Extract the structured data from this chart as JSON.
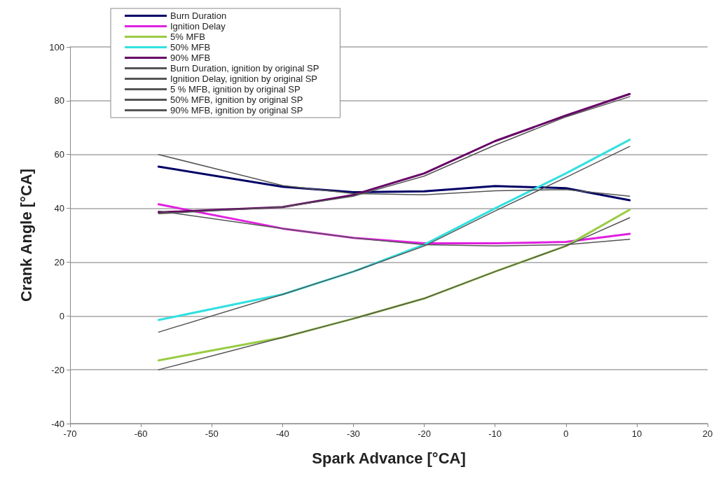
{
  "chart_data": {
    "type": "line",
    "xlabel": "Spark Advance [°CA]",
    "ylabel": "Crank Angle [°CA]",
    "x": [
      -57.5,
      -40,
      -30,
      -20,
      -10,
      0,
      9
    ],
    "xlim": [
      -70,
      20
    ],
    "xticks": [
      -70,
      -60,
      -50,
      -40,
      -30,
      -20,
      -10,
      0,
      10,
      20
    ],
    "ylim": [
      -40,
      100
    ],
    "yticks": [
      -40,
      -20,
      0,
      20,
      40,
      60,
      80,
      100
    ],
    "grid": "y",
    "legend": "top left",
    "marker": "none",
    "line_style": "solid",
    "series": [
      {
        "name": "Burn Duration",
        "color": "#000066",
        "values": [
          55.5,
          48,
          46,
          46.3,
          48.3,
          47.5,
          43
        ]
      },
      {
        "name": "Ignition Delay",
        "color": "#e020e0",
        "values": [
          41.5,
          32.5,
          29,
          27,
          27,
          27.5,
          30.5
        ]
      },
      {
        "name": "5% MFB",
        "color": "#99cc44",
        "values": [
          -16.5,
          -8,
          -1,
          6.5,
          16.5,
          26,
          39.5
        ]
      },
      {
        "name": "50% MFB",
        "color": "#33e0e0",
        "values": [
          -1.5,
          8,
          16.5,
          26.5,
          40,
          53,
          65.5
        ]
      },
      {
        "name": "90% MFB",
        "color": "#660066",
        "values": [
          38.5,
          40.5,
          45,
          53,
          65,
          74.5,
          82.5
        ]
      },
      {
        "name": "Burn Duration, ignition by original SP",
        "color": "#555555",
        "values": [
          60,
          48.5,
          45.5,
          45,
          46.5,
          47,
          44.5
        ]
      },
      {
        "name": "Ignition Delay, ignition by original SP",
        "color": "#555555",
        "values": [
          39,
          32.5,
          29,
          26.5,
          26,
          26.5,
          28.5
        ]
      },
      {
        "name": "5 % MFB, ignition by original SP",
        "color": "#555555",
        "values": [
          -20,
          -8,
          -1,
          6.5,
          16.5,
          26,
          36.5
        ]
      },
      {
        "name": "50% MFB, ignition by original SP",
        "color": "#555555",
        "values": [
          -6,
          8,
          16.5,
          26,
          39,
          51.5,
          63
        ]
      },
      {
        "name": "90% MFB, ignition by original SP",
        "color": "#555555",
        "values": [
          38,
          40.5,
          44.5,
          52,
          63.5,
          74,
          81.5
        ]
      }
    ]
  }
}
